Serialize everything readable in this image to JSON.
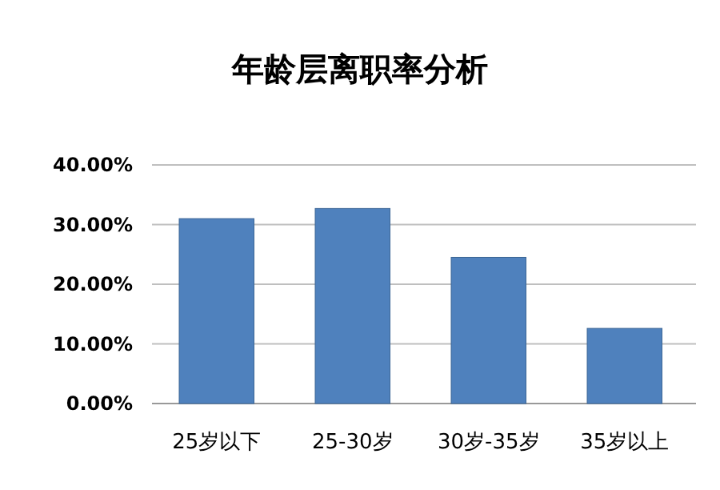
{
  "chart_data": {
    "type": "bar",
    "title": "年龄层离职率分析",
    "categories": [
      "25岁以下",
      "25-30岁",
      "30岁-35岁",
      "35岁以上"
    ],
    "values": [
      31,
      32.7,
      24.5,
      12.6
    ],
    "color": "#4f81bd",
    "ylim": [
      0,
      40
    ],
    "yticks": [
      {
        "value": 0,
        "label": "0.00%"
      },
      {
        "value": 10,
        "label": "10.00%"
      },
      {
        "value": 20,
        "label": "20.00%"
      },
      {
        "value": 30,
        "label": "30.00%"
      },
      {
        "value": 40,
        "label": "40.00%"
      }
    ],
    "grid": "y"
  }
}
